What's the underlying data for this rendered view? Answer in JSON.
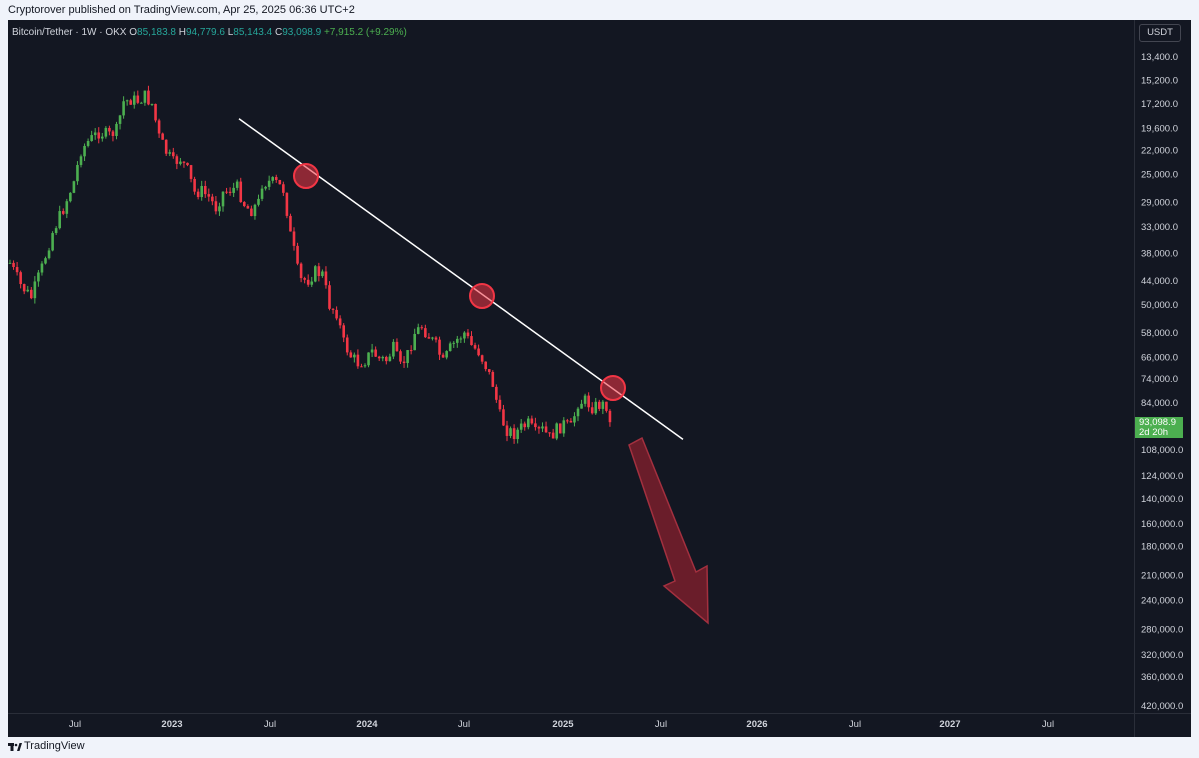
{
  "header": {
    "published": "Cryptorover published on TradingView.com, Apr 25, 2025 06:36 UTC+2"
  },
  "symbol": {
    "name": "Bitcoin/Tether · 1W · OKX",
    "o_label": "O",
    "o_value": "85,183.8",
    "h_label": "H",
    "h_value": "94,779.6",
    "l_label": "L",
    "l_value": "85,143.4",
    "c_label": "C",
    "c_value": "93,098.9",
    "change": "+7,915.2 (+9.29%)"
  },
  "axis": {
    "currency": "USDT"
  },
  "last_price": {
    "value": "93,098.9",
    "countdown": "2d 20h"
  },
  "footer": {
    "brand": "TradingView"
  },
  "colors": {
    "up": "#4caf50",
    "down": "#f23645",
    "background": "#131722",
    "trendline": "#ffffff",
    "arrow": "#7a1f2b"
  },
  "chart_data": {
    "type": "candlestick",
    "scale": "log, inverted",
    "y_tick_labels": [
      "13,400.0",
      "15,200.0",
      "17,200.0",
      "19,600.0",
      "22,000.0",
      "25,000.0",
      "29,000.0",
      "33,000.0",
      "38,000.0",
      "44,000.0",
      "50,000.0",
      "58,000.0",
      "66,000.0",
      "74,000.0",
      "84,000.0",
      "93,098.9",
      "108,000.0",
      "124,000.0",
      "140,000.0",
      "160,000.0",
      "180,000.0",
      "210,000.0",
      "240,000.0",
      "280,000.0",
      "320,000.0",
      "360,000.0",
      "420,000.0"
    ],
    "x_tick_labels": [
      "Jul",
      "2023",
      "Jul",
      "2024",
      "Jul",
      "2025",
      "Jul",
      "2026",
      "Jul",
      "2027",
      "Jul"
    ],
    "x_tick_bold": [
      false,
      true,
      false,
      true,
      false,
      true,
      false,
      true,
      false,
      true,
      false
    ],
    "price_path": [
      [
        0,
        40000
      ],
      [
        3,
        45000
      ],
      [
        6,
        48000
      ],
      [
        9,
        41000
      ],
      [
        12,
        34000
      ],
      [
        15,
        30000
      ],
      [
        18,
        26000
      ],
      [
        20,
        22000
      ],
      [
        22,
        21000
      ],
      [
        25,
        20000
      ],
      [
        28,
        20300
      ],
      [
        30,
        19800
      ],
      [
        32,
        17000
      ],
      [
        34,
        16800
      ],
      [
        36,
        16900
      ],
      [
        38,
        16500
      ],
      [
        40,
        17200
      ],
      [
        42,
        20500
      ],
      [
        44,
        22200
      ],
      [
        46,
        23500
      ],
      [
        48,
        23000
      ],
      [
        50,
        24500
      ],
      [
        52,
        27500
      ],
      [
        54,
        27300
      ],
      [
        56,
        28200
      ],
      [
        58,
        29800
      ],
      [
        60,
        27500
      ],
      [
        62,
        27100
      ],
      [
        64,
        26800
      ],
      [
        66,
        29200
      ],
      [
        67,
        29900
      ],
      [
        68,
        30200
      ],
      [
        70,
        29000
      ],
      [
        71,
        26200
      ],
      [
        73,
        26000
      ],
      [
        75,
        26200
      ],
      [
        77,
        27100
      ],
      [
        78,
        30300
      ],
      [
        79,
        34500
      ],
      [
        80,
        37500
      ],
      [
        81,
        41500
      ],
      [
        82,
        43800
      ],
      [
        84,
        43700
      ],
      [
        86,
        41900
      ],
      [
        88,
        42500
      ],
      [
        90,
        50000
      ],
      [
        92,
        52000
      ],
      [
        94,
        61000
      ],
      [
        96,
        65500
      ],
      [
        98,
        68000
      ],
      [
        100,
        67000
      ],
      [
        102,
        64000
      ],
      [
        104,
        66500
      ],
      [
        106,
        67000
      ],
      [
        108,
        63000
      ],
      [
        110,
        69500
      ],
      [
        112,
        65000
      ],
      [
        114,
        58000
      ],
      [
        116,
        56000
      ],
      [
        118,
        59000
      ],
      [
        120,
        62000
      ],
      [
        122,
        68000
      ],
      [
        124,
        63000
      ],
      [
        126,
        60000
      ],
      [
        128,
        58000
      ],
      [
        130,
        62000
      ],
      [
        132,
        64000
      ],
      [
        134,
        69000
      ],
      [
        136,
        76000
      ],
      [
        138,
        90000
      ],
      [
        140,
        97000
      ],
      [
        142,
        99000
      ],
      [
        144,
        96000
      ],
      [
        146,
        94000
      ],
      [
        148,
        99000
      ],
      [
        150,
        97000
      ],
      [
        152,
        101000
      ],
      [
        154,
        97000
      ],
      [
        156,
        94000
      ],
      [
        158,
        96000
      ],
      [
        160,
        84000
      ],
      [
        162,
        83000
      ],
      [
        164,
        86000
      ],
      [
        166,
        85000
      ],
      [
        168,
        85000
      ],
      [
        169,
        93099
      ]
    ],
    "trendline": {
      "from": {
        "week": 70,
        "price": 18600
      },
      "to": {
        "week": 208,
        "price": 102000
      }
    },
    "touch_points": [
      {
        "week": 90,
        "price": 24500
      },
      {
        "week": 142,
        "price": 47000
      },
      {
        "week": 180,
        "price": 76000
      }
    ],
    "projection_arrow": {
      "from_price": 103000,
      "to_price": 290000,
      "direction": "down"
    }
  }
}
